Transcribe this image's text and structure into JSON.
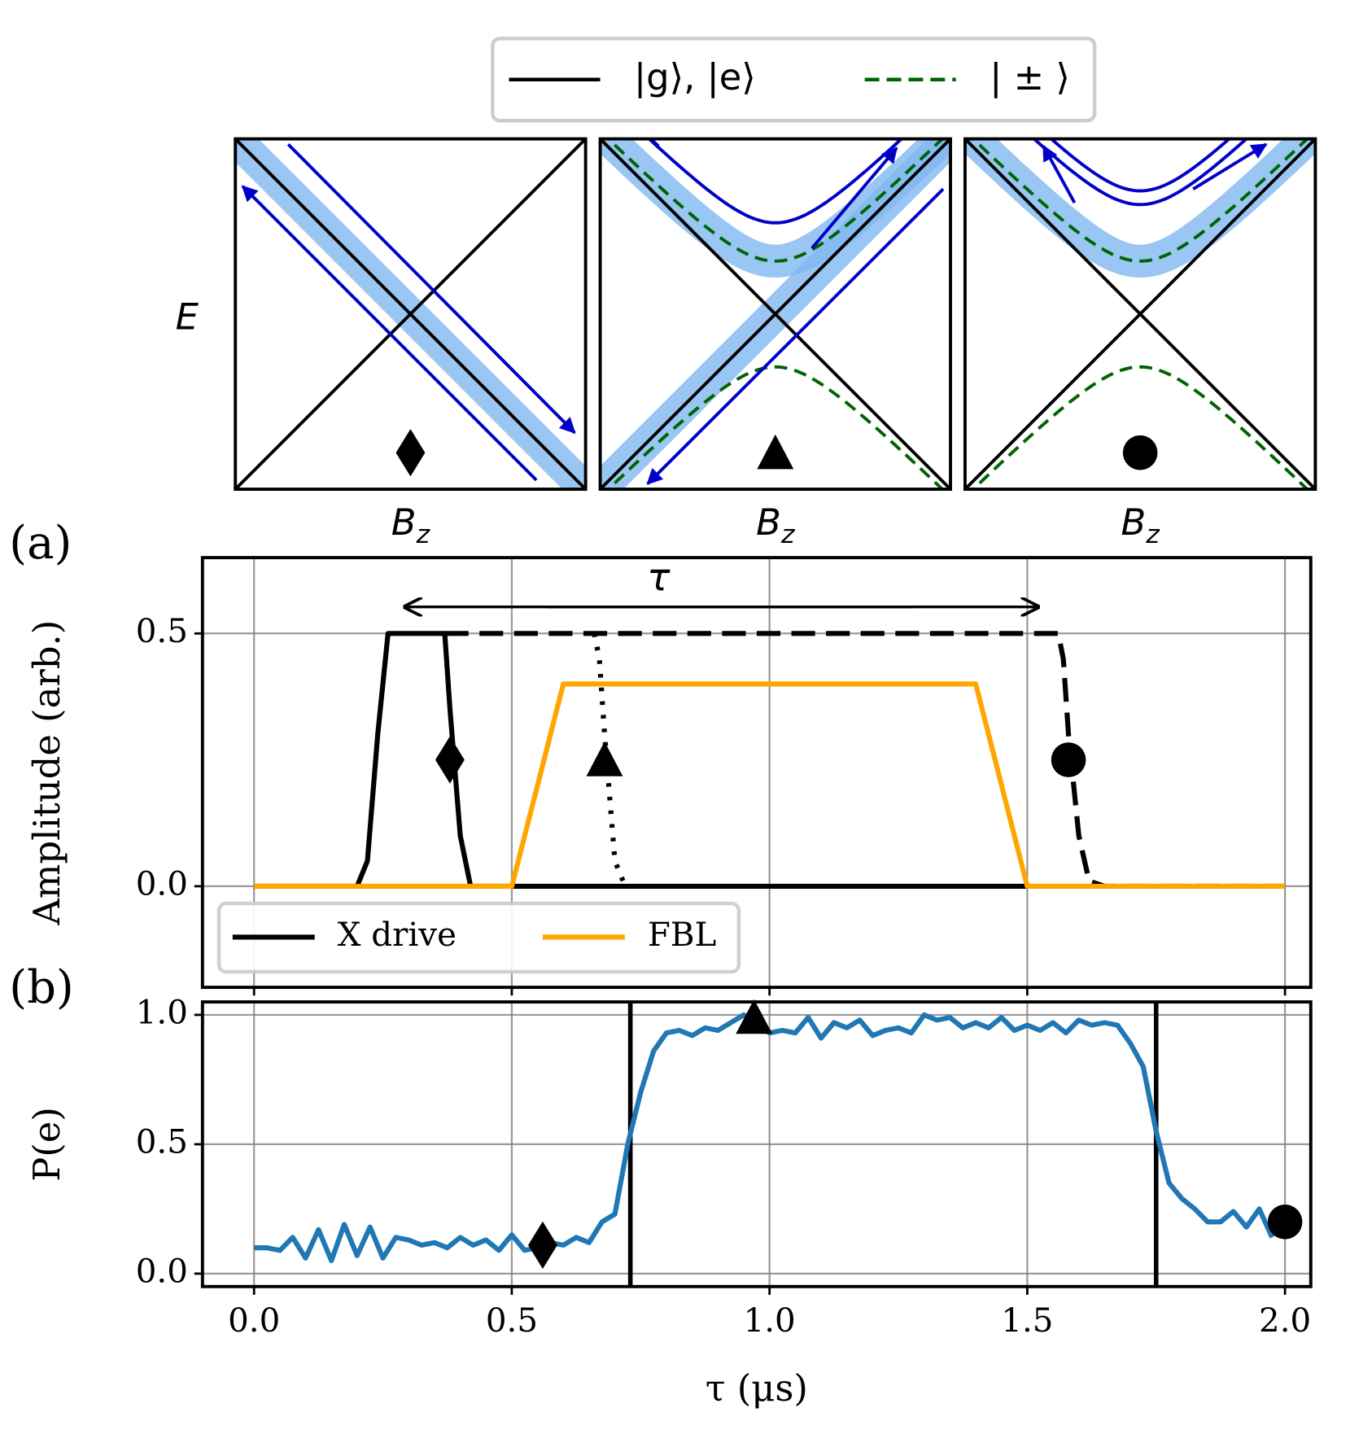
{
  "diagrams": {
    "legend": [
      "|g⟩, |e⟩",
      "| ± ⟩"
    ],
    "ylabel": "E",
    "xlabels": [
      {
        "symbol": "B",
        "subscript": "z"
      },
      {
        "symbol": "B",
        "subscript": "z"
      },
      {
        "symbol": "B",
        "subscript": "z"
      }
    ]
  },
  "chart_data": [
    {
      "type": "line",
      "panel_label": "(a)",
      "ylabel": "Amplitude (arb.)",
      "annotation": "τ",
      "xlim": [
        -0.1,
        2.05
      ],
      "ylim": [
        -0.2,
        0.65
      ],
      "xticks": [
        0,
        0.5,
        1,
        1.5,
        2
      ],
      "yticks": [
        {
          "value": 0,
          "label": "0.0"
        },
        {
          "value": 0.5,
          "label": "0.5"
        }
      ],
      "grid": true,
      "legend": "lower left",
      "series": [
        {
          "name": "X drive",
          "color": "#000000",
          "linestyle": "solid",
          "x": [
            0,
            0.2,
            0.22,
            0.24,
            0.26,
            0.37,
            0.38,
            0.4,
            0.42,
            0.5,
            1.5
          ],
          "values": [
            0,
            0,
            0.05,
            0.3,
            0.5,
            0.5,
            0.35,
            0.1,
            0,
            0,
            0
          ]
        },
        {
          "color": "#000000",
          "linestyle": "dotted",
          "x": [
            0.66,
            0.67,
            0.68,
            0.7,
            0.72
          ],
          "values": [
            0.5,
            0.45,
            0.3,
            0.05,
            0
          ]
        },
        {
          "color": "#000000",
          "linestyle": "dashed",
          "x": [
            0.37,
            1.56,
            1.57,
            1.58,
            1.6,
            1.62,
            1.65,
            2.0
          ],
          "values": [
            0.5,
            0.5,
            0.45,
            0.3,
            0.1,
            0.01,
            0,
            0
          ]
        },
        {
          "name": "FBL",
          "color": "#ffa500",
          "linestyle": "solid",
          "x": [
            0,
            0.5,
            0.6,
            1.4,
            1.5,
            2.0
          ],
          "values": [
            0,
            0,
            0.4,
            0.4,
            0,
            0
          ]
        }
      ],
      "markers": {
        "shapes": [
          "diamond",
          "triangle",
          "circle"
        ],
        "x": [
          0.38,
          0.68,
          1.58
        ],
        "values": [
          0.25,
          0.25,
          0.25
        ]
      }
    },
    {
      "type": "line",
      "panel_label": "(b)",
      "ylabel": "P(e)",
      "xlabel": "τ (μs)",
      "xlim": [
        -0.1,
        2.05
      ],
      "ylim": [
        -0.05,
        1.05
      ],
      "xticks": [
        {
          "value": 0,
          "label": "0.0"
        },
        {
          "value": 0.5,
          "label": "0.5"
        },
        {
          "value": 1,
          "label": "1.0"
        },
        {
          "value": 1.5,
          "label": "1.5"
        },
        {
          "value": 2,
          "label": "2.0"
        }
      ],
      "yticks": [
        {
          "value": 0,
          "label": "0.0"
        },
        {
          "value": 0.5,
          "label": "0.5"
        },
        {
          "value": 1,
          "label": "1.0"
        }
      ],
      "grid": true,
      "series": [
        {
          "color": "#1f77b4",
          "linestyle": "solid",
          "x": [
            0,
            0.025,
            0.05,
            0.075,
            0.1,
            0.125,
            0.15,
            0.175,
            0.2,
            0.225,
            0.25,
            0.275,
            0.3,
            0.325,
            0.35,
            0.375,
            0.4,
            0.425,
            0.45,
            0.475,
            0.5,
            0.525,
            0.55,
            0.575,
            0.6,
            0.625,
            0.65,
            0.675,
            0.7,
            0.725,
            0.75,
            0.775,
            0.8,
            0.825,
            0.85,
            0.875,
            0.9,
            0.925,
            0.95,
            0.975,
            1.0,
            1.025,
            1.05,
            1.075,
            1.1,
            1.125,
            1.15,
            1.175,
            1.2,
            1.225,
            1.25,
            1.275,
            1.3,
            1.325,
            1.35,
            1.375,
            1.4,
            1.425,
            1.45,
            1.475,
            1.5,
            1.525,
            1.55,
            1.575,
            1.6,
            1.625,
            1.65,
            1.675,
            1.7,
            1.725,
            1.75,
            1.775,
            1.8,
            1.825,
            1.85,
            1.875,
            1.9,
            1.925,
            1.95,
            1.975
          ],
          "values": [
            0.1,
            0.1,
            0.09,
            0.14,
            0.06,
            0.17,
            0.05,
            0.19,
            0.07,
            0.18,
            0.06,
            0.14,
            0.13,
            0.11,
            0.12,
            0.1,
            0.14,
            0.11,
            0.13,
            0.09,
            0.15,
            0.09,
            0.1,
            0.12,
            0.11,
            0.14,
            0.12,
            0.2,
            0.23,
            0.5,
            0.7,
            0.86,
            0.93,
            0.94,
            0.92,
            0.95,
            0.94,
            0.97,
            1.0,
            0.96,
            0.93,
            0.94,
            0.93,
            0.99,
            0.91,
            0.97,
            0.95,
            0.98,
            0.92,
            0.94,
            0.95,
            0.93,
            1.0,
            0.98,
            0.99,
            0.95,
            0.97,
            0.95,
            0.99,
            0.94,
            0.96,
            0.94,
            0.97,
            0.93,
            0.98,
            0.96,
            0.97,
            0.96,
            0.89,
            0.8,
            0.55,
            0.35,
            0.29,
            0.25,
            0.2,
            0.2,
            0.24,
            0.18,
            0.25,
            0.14
          ]
        }
      ],
      "vlines": [
        0.73,
        1.75
      ],
      "markers": {
        "shapes": [
          "diamond",
          "triangle",
          "circle"
        ],
        "x": [
          0.56,
          0.97,
          2.0
        ],
        "values": [
          0.11,
          0.99,
          0.2
        ]
      }
    }
  ]
}
